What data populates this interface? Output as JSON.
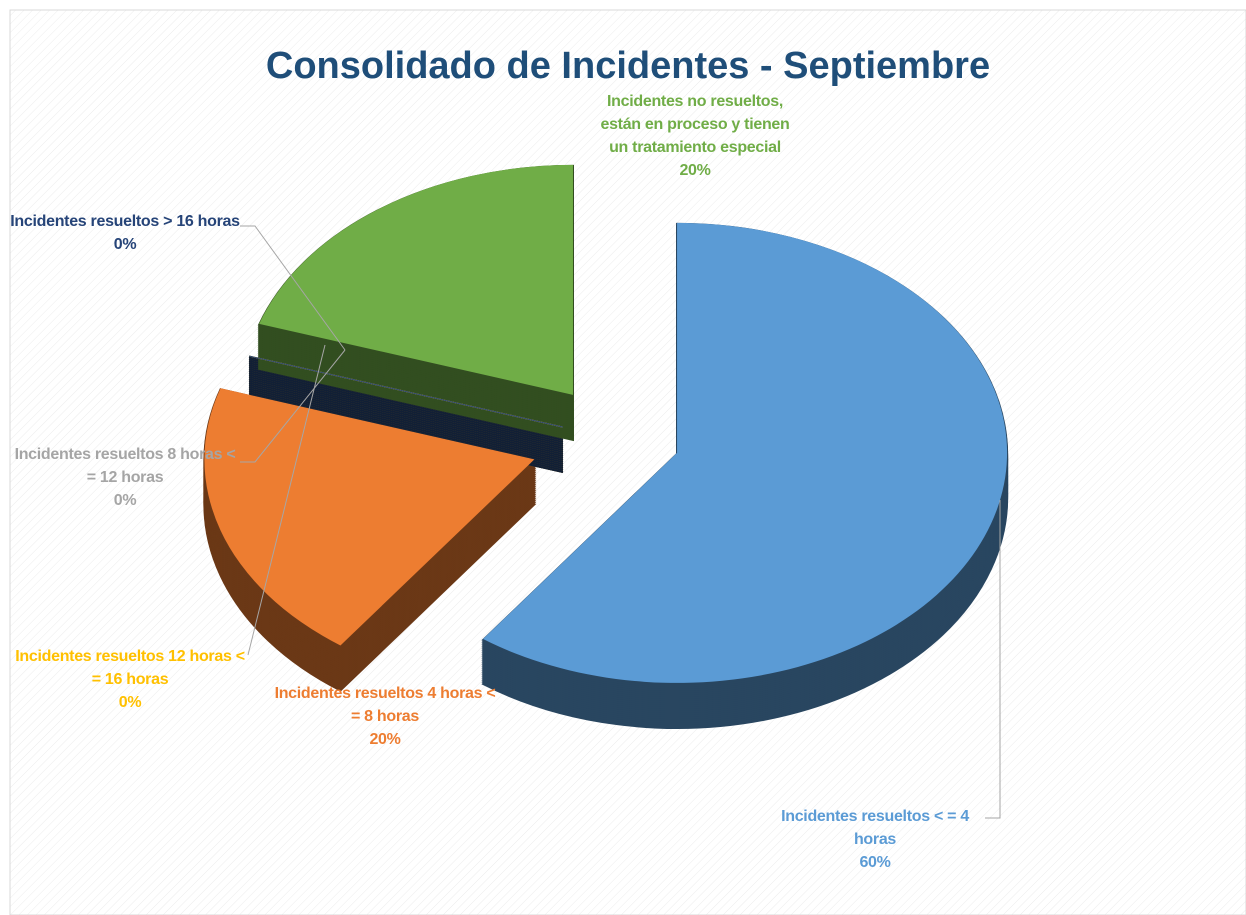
{
  "chart_data": {
    "type": "pie",
    "title": "Consolidado de Incidentes - Septiembre",
    "categories": [
      "Incidentes resueltos < = 4 horas",
      "Incidentes resueltos 4 horas < = 8 horas",
      "Incidentes resueltos 8 horas < = 12 horas",
      "Incidentes resueltos 12 horas < = 16 horas",
      "Incidentes resueltos > 16 horas",
      "Incidentes no resueltos, están en proceso y tienen un tratamiento especial"
    ],
    "values": [
      60,
      20,
      0,
      0,
      0,
      20
    ],
    "value_labels": [
      "60%",
      "20%",
      "0%",
      "0%",
      "0%",
      "20%"
    ],
    "colors": [
      "#5b9bd5",
      "#ed7d31",
      "#a5a5a5",
      "#ffc000",
      "#264478",
      "#70ad47"
    ]
  }
}
